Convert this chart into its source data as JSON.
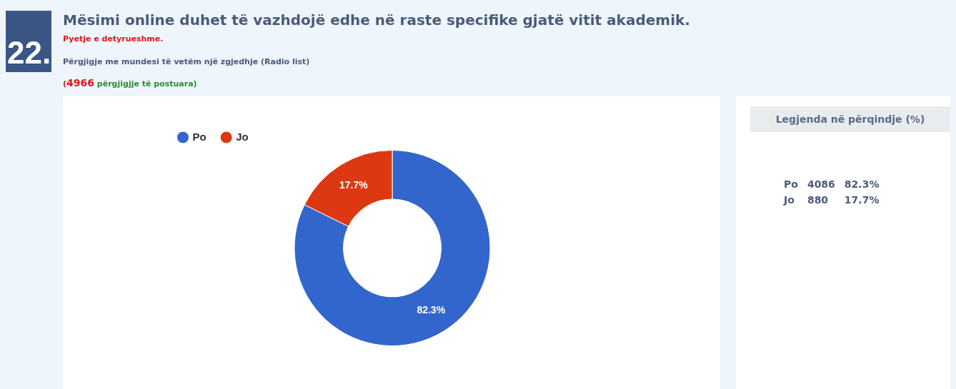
{
  "chart_data": {
    "type": "donut",
    "title": "Mësimi online duhet të vazhdojë edhe në raste specifike gjatë vitit akademik.",
    "categories": [
      "Po",
      "Jo"
    ],
    "values": [
      82.3,
      17.7
    ],
    "value_labels": [
      "82.3%",
      "17.7%"
    ],
    "colors": [
      "#3366cc",
      "#dc3912"
    ],
    "legend": "top left",
    "legend_title": "Legjenda në përqindje (%)",
    "annotations": [
      "22.",
      "Pyetje e detyrueshme.",
      "Përgjigje me mundesi të vetëm një zgjedhje (Radio list)",
      "(4966 përgjigjje të postuara)",
      {
        "text": "4086",
        "x": "Po"
      },
      {
        "text": "880",
        "x": "Jo"
      }
    ]
  }
}
